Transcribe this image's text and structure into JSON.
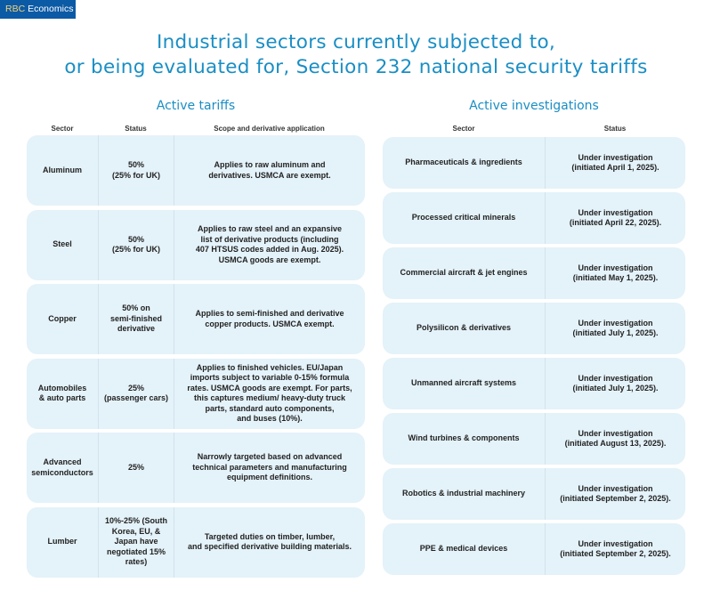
{
  "brand": {
    "rbc": "RBC",
    "economics": "Economics"
  },
  "title": {
    "line1": "Industrial sectors currently subjected to,",
    "line2": "or being evaluated for, Section 232 national security tariffs"
  },
  "active_tariffs": {
    "heading": "Active tariffs",
    "columns": [
      "Sector",
      "Status",
      "Scope and derivative application"
    ],
    "rows": [
      {
        "sector": "Aluminum",
        "status": "50%\n(25% for UK)",
        "scope": "Applies to raw aluminum and\nderivatives. USMCA are exempt."
      },
      {
        "sector": "Steel",
        "status": "50%\n(25% for UK)",
        "scope": "Applies to raw steel and an expansive\nlist of derivative products (including\n407 HTSUS codes added in Aug. 2025).\nUSMCA goods are exempt."
      },
      {
        "sector": "Copper",
        "status": "50% on\nsemi-finished\nderivative",
        "scope": "Applies to semi-finished and derivative\ncopper products. USMCA exempt."
      },
      {
        "sector": "Automobiles\n& auto parts",
        "status": "25%\n(passenger cars)",
        "scope": "Applies to finished vehicles. EU/Japan\nimports subject to variable 0-15% formula\nrates. USMCA goods are exempt. For parts,\nthis captures medium/ heavy-duty truck\nparts, standard auto components,\nand buses (10%)."
      },
      {
        "sector": "Advanced\nsemiconductors",
        "status": "25%",
        "scope": "Narrowly targeted based on advanced\ntechnical parameters and manufacturing\nequipment definitions."
      },
      {
        "sector": "Lumber",
        "status": "10%-25% (South\nKorea, EU, &\nJapan have\nnegotiated 15%\nrates)",
        "scope": "Targeted duties on timber, lumber,\nand specified derivative building materials."
      }
    ]
  },
  "active_investigations": {
    "heading": "Active investigations",
    "columns": [
      "Sector",
      "Status"
    ],
    "rows": [
      {
        "sector": "Pharmaceuticals & ingredients",
        "status": "Under investigation\n(initiated April 1, 2025)."
      },
      {
        "sector": "Processed critical minerals",
        "status": "Under investigation\n(initiated April 22, 2025)."
      },
      {
        "sector": "Commercial aircraft & jet engines",
        "status": "Under investigation\n(initiated May 1, 2025)."
      },
      {
        "sector": "Polysilicon & derivatives",
        "status": "Under investigation\n(initiated July 1, 2025)."
      },
      {
        "sector": "Unmanned aircraft systems",
        "status": "Under investigation\n(initiated July 1, 2025)."
      },
      {
        "sector": "Wind turbines & components",
        "status": "Under investigation\n(initiated August 13, 2025)."
      },
      {
        "sector": "Robotics & industrial machinery",
        "status": "Under investigation\n(initiated September 2, 2025)."
      },
      {
        "sector": "PPE & medical devices",
        "status": "Under investigation\n(initiated September 2, 2025)."
      }
    ]
  },
  "colors": {
    "brand_blue": "#0b5aa5",
    "title_blue": "#1a8ec4",
    "row_fill": "#e4f2f9"
  }
}
